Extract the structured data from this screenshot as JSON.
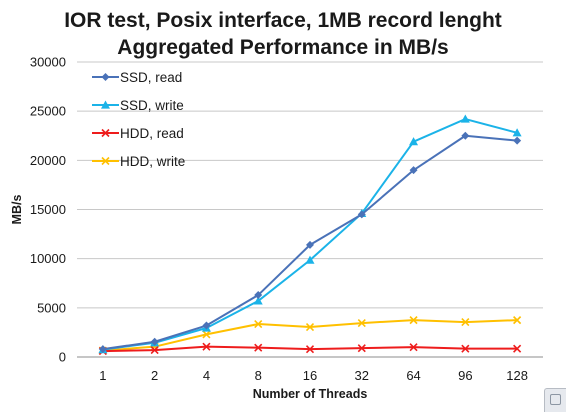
{
  "chart_data": {
    "type": "line",
    "title_lines": [
      "IOR test, Posix interface, 1MB record lenght",
      "Aggregated Performance in MB/s"
    ],
    "xlabel": "Number of Threads",
    "ylabel": "MB/s",
    "categories": [
      "1",
      "2",
      "4",
      "8",
      "16",
      "32",
      "64",
      "96",
      "128"
    ],
    "ylim": [
      0,
      30000
    ],
    "yticks": [
      0,
      5000,
      10000,
      15000,
      20000,
      25000,
      30000
    ],
    "ytick_labels": [
      "0",
      "5000",
      "10000",
      "15000",
      "20000",
      "25000",
      "30000"
    ],
    "grid": "horizontal",
    "legend_position": "top-left",
    "series": [
      {
        "name": "SSD, read",
        "color": "#4a72b8",
        "marker": "diamond",
        "values": [
          800,
          1550,
          3200,
          6300,
          11400,
          14500,
          19000,
          22500,
          22000
        ]
      },
      {
        "name": "SSD, write",
        "color": "#1bb3e8",
        "marker": "triangle",
        "values": [
          750,
          1450,
          2950,
          5700,
          9850,
          14600,
          21900,
          24200,
          22800
        ]
      },
      {
        "name": "HDD, read",
        "color": "#ee1c1c",
        "marker": "x",
        "values": [
          600,
          700,
          1050,
          950,
          800,
          900,
          1000,
          850,
          850
        ]
      },
      {
        "name": "HDD, write",
        "color": "#ffc000",
        "marker": "x",
        "values": [
          650,
          1050,
          2300,
          3350,
          3050,
          3450,
          3750,
          3550,
          3750
        ]
      }
    ]
  }
}
